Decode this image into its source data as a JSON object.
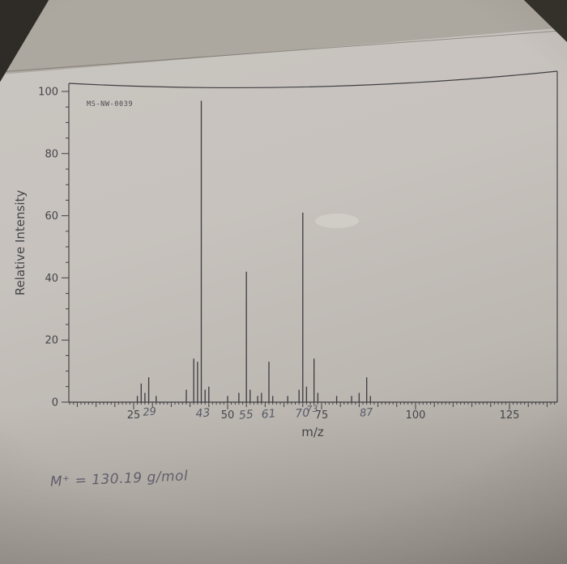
{
  "photo": {
    "paper_color": "#c7c2bd",
    "ink_color": "#413f44",
    "pencil_color": "#585c67"
  },
  "handwriting": {
    "note": "M⁺ = 130.19 g/mol"
  },
  "chart_data": {
    "type": "bar",
    "subtype": "mass-spectrum-stick-plot",
    "instrument_label": "MS-NW-0039",
    "xlabel": "m/z",
    "ylabel": "Relative Intensity",
    "xlim": [
      8,
      137
    ],
    "ylim": [
      0,
      100
    ],
    "grid": false,
    "x_major_ticks": [
      25,
      50,
      75,
      100,
      125
    ],
    "y_ticks": [
      0,
      20,
      40,
      60,
      80,
      100
    ],
    "peaks": [
      [
        26,
        2
      ],
      [
        27,
        6
      ],
      [
        28,
        3
      ],
      [
        29,
        8
      ],
      [
        31,
        2
      ],
      [
        39,
        4
      ],
      [
        41,
        14
      ],
      [
        42,
        13
      ],
      [
        43,
        97
      ],
      [
        44,
        4
      ],
      [
        45,
        5
      ],
      [
        50,
        2
      ],
      [
        53,
        3
      ],
      [
        55,
        42
      ],
      [
        56,
        4
      ],
      [
        58,
        2
      ],
      [
        59,
        3
      ],
      [
        61,
        13
      ],
      [
        62,
        2
      ],
      [
        66,
        2
      ],
      [
        69,
        4
      ],
      [
        70,
        61
      ],
      [
        71,
        5
      ],
      [
        73,
        14
      ],
      [
        74,
        3
      ],
      [
        79,
        2
      ],
      [
        83,
        2
      ],
      [
        85,
        3
      ],
      [
        87,
        8
      ],
      [
        88,
        2
      ]
    ],
    "annotations_handwritten": [
      {
        "text": "29",
        "mz": 29.3,
        "dy": -2,
        "size": 13
      },
      {
        "text": "43",
        "mz": 43.5,
        "dy": 0,
        "size": 14
      },
      {
        "text": "55",
        "mz": 55.0,
        "dy": 2,
        "size": 14
      },
      {
        "text": "61",
        "mz": 61.0,
        "dy": 1,
        "size": 14
      },
      {
        "text": "70",
        "mz": 70.0,
        "dy": 0,
        "size": 14
      },
      {
        "text": "73",
        "mz": 72.6,
        "dy": -6,
        "size": 11
      },
      {
        "text": "87",
        "mz": 87.0,
        "dy": -1,
        "size": 13
      }
    ]
  }
}
